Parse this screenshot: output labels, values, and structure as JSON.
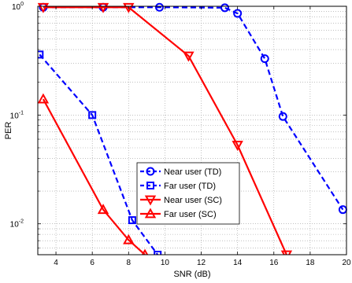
{
  "chart_data": {
    "type": "line",
    "xlabel": "SNR (dB)",
    "ylabel": "PER",
    "xlim": [
      3,
      20
    ],
    "ylim": [
      0.0052,
      1.0
    ],
    "y_scale": "log",
    "grid": true,
    "legend_position": "center",
    "x_ticks": [
      4,
      6,
      8,
      10,
      12,
      14,
      16,
      18,
      20
    ],
    "y_ticks": [
      {
        "value": 1,
        "label_base": "10",
        "label_exp": "0"
      },
      {
        "value": 0.1,
        "label_base": "10",
        "label_exp": "-1"
      },
      {
        "value": 0.01,
        "label_base": "10",
        "label_exp": "-2"
      }
    ],
    "series": [
      {
        "name": "Near user (TD)",
        "color": "#0000ff",
        "line": "dashed",
        "marker": "circle",
        "x": [
          3.3,
          6.6,
          9.7,
          13.3,
          14.0,
          15.5,
          16.5,
          19.8
        ],
        "y": [
          0.98,
          0.98,
          0.98,
          0.97,
          0.86,
          0.33,
          0.097,
          0.0135
        ]
      },
      {
        "name": "Far user (TD)",
        "color": "#0000ff",
        "line": "dashed",
        "marker": "square",
        "x": [
          3.1,
          6.0,
          8.2,
          9.6
        ],
        "y": [
          0.36,
          0.1,
          0.0108,
          0.0052
        ]
      },
      {
        "name": "Near user (SC)",
        "color": "#ff0000",
        "line": "solid",
        "marker": "triangle-down",
        "x": [
          3.3,
          6.6,
          8.0,
          11.3,
          14.0,
          16.7
        ],
        "y": [
          0.98,
          0.98,
          0.98,
          0.35,
          0.053,
          0.0052
        ]
      },
      {
        "name": "Far user (SC)",
        "color": "#ff0000",
        "line": "solid",
        "marker": "triangle-up",
        "x": [
          3.3,
          6.6,
          8.0,
          8.9
        ],
        "y": [
          0.14,
          0.0135,
          0.0071,
          0.0052
        ]
      }
    ]
  }
}
